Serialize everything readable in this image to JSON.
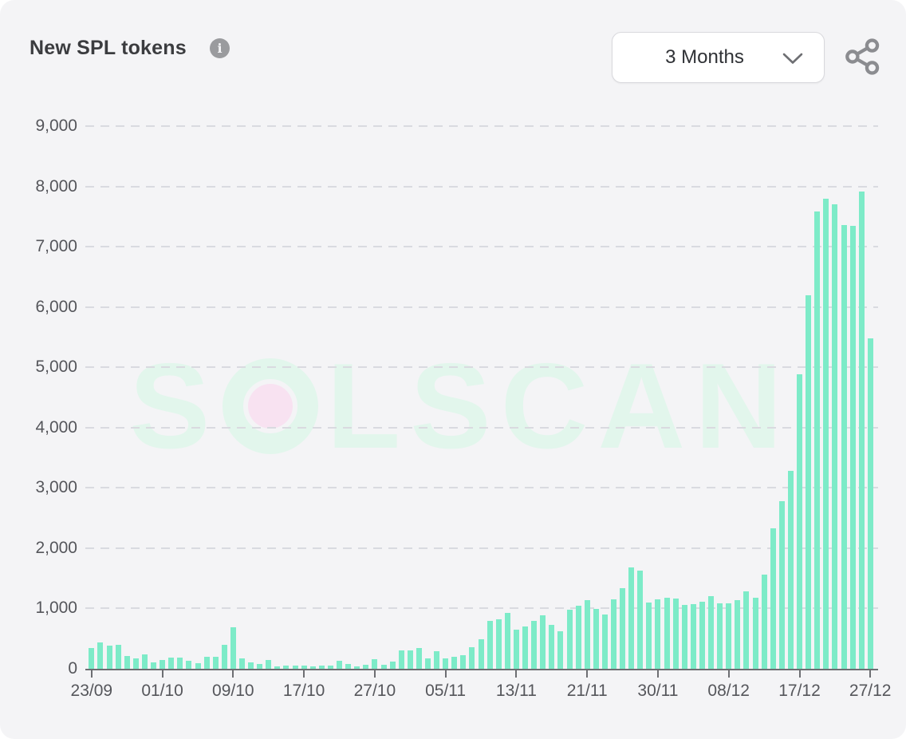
{
  "header": {
    "title": "New SPL tokens",
    "info_icon": "info-circle",
    "range_selector": {
      "value": "3 Months",
      "chevron_icon": "chevron-down"
    },
    "share_icon": "share-nodes"
  },
  "watermark": {
    "text": "SOLSCAN",
    "left": "S",
    "right": "LSCAN"
  },
  "colors": {
    "background": "#f4f4f6",
    "bar": "#7debc8",
    "grid": "#d9dae0",
    "axis_line": "#6d6e72",
    "axis_text": "#55565b",
    "title_text": "#3b3c3f",
    "watermark_mint": "#e2f6ec",
    "watermark_pink": "#f8e2f1"
  },
  "chart_data": {
    "type": "bar",
    "title": "New SPL tokens",
    "ylim": [
      0,
      9000
    ],
    "y_ticks": [
      0,
      1000,
      2000,
      3000,
      4000,
      5000,
      6000,
      7000,
      8000,
      9000
    ],
    "y_tick_labels": [
      "0",
      "1,000",
      "2,000",
      "3,000",
      "4,000",
      "5,000",
      "6,000",
      "7,000",
      "8,000",
      "9,000"
    ],
    "x_tick_labels": [
      "23/09",
      "01/10",
      "09/10",
      "17/10",
      "27/10",
      "05/11",
      "13/11",
      "21/11",
      "30/11",
      "08/12",
      "17/12",
      "27/12"
    ],
    "x_tick_indices": [
      0,
      8,
      16,
      24,
      32,
      40,
      48,
      56,
      64,
      72,
      80,
      88
    ],
    "grid": "dashed-horizontal",
    "legend": "none",
    "values": [
      340,
      440,
      390,
      395,
      215,
      175,
      245,
      110,
      140,
      190,
      180,
      135,
      90,
      195,
      205,
      400,
      690,
      175,
      110,
      75,
      150,
      45,
      55,
      55,
      55,
      45,
      55,
      60,
      135,
      80,
      35,
      70,
      160,
      65,
      120,
      310,
      300,
      345,
      170,
      290,
      175,
      205,
      220,
      355,
      490,
      790,
      820,
      930,
      650,
      700,
      795,
      885,
      730,
      620,
      980,
      1050,
      1140,
      995,
      895,
      1150,
      1335,
      1680,
      1630,
      1100,
      1155,
      1175,
      1160,
      1060,
      1075,
      1110,
      1200,
      1080,
      1090,
      1140,
      1290,
      1180,
      1560,
      2330,
      2780,
      3280,
      4890,
      6190,
      7580,
      7790,
      7700,
      7360,
      7340,
      7915,
      5480
    ]
  }
}
